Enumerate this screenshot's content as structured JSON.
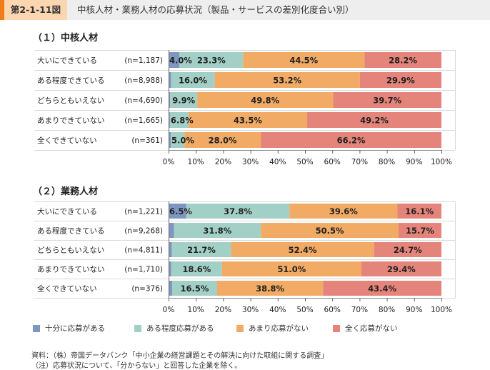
{
  "header": {
    "figure_number": "第2-1-11図",
    "title": "中核人材・業務人材の応募状況（製品・サービスの差別化度合い別）",
    "accent_color": "#ee7d1a"
  },
  "legend": [
    {
      "label": "十分に応募がある",
      "color": "#7f96c0"
    },
    {
      "label": "ある程度応募がある",
      "color": "#a3d0c6"
    },
    {
      "label": "あまり応募がない",
      "color": "#f1ab65"
    },
    {
      "label": "全く応募がない",
      "color": "#e5847a"
    }
  ],
  "chart_data": [
    {
      "type": "bar",
      "orientation": "horizontal-stacked-100",
      "title": "（１）中核人材",
      "categories": [
        "大いにできている",
        "ある程度できている",
        "どちらともいえない",
        "あまりできていない",
        "全くできていない"
      ],
      "n_labels": [
        "(n=1,187)",
        "(n=8,988)",
        "(n=4,690)",
        "(n=1,665)",
        "(n=361)"
      ],
      "series": [
        {
          "name": "十分に応募がある",
          "values": [
            4.0,
            0.9,
            0.6,
            0.5,
            0.8
          ],
          "labels": [
            "4.0%",
            "",
            "",
            "",
            ""
          ]
        },
        {
          "name": "ある程度応募がある",
          "values": [
            23.3,
            16.0,
            9.9,
            6.8,
            5.0
          ],
          "labels": [
            "23.3%",
            "16.0%",
            "9.9%",
            "6.8%",
            "5.0%"
          ]
        },
        {
          "name": "あまり応募がない",
          "values": [
            44.5,
            53.2,
            49.8,
            43.5,
            28.0
          ],
          "labels": [
            "44.5%",
            "53.2%",
            "49.8%",
            "43.5%",
            "28.0%"
          ]
        },
        {
          "name": "全く応募がない",
          "values": [
            28.2,
            29.9,
            39.7,
            49.2,
            66.2
          ],
          "labels": [
            "28.2%",
            "29.9%",
            "39.7%",
            "49.2%",
            "66.2%"
          ]
        }
      ],
      "xlim": [
        0,
        100
      ],
      "xticks": [
        "0%",
        "10%",
        "20%",
        "30%",
        "40%",
        "50%",
        "60%",
        "70%",
        "80%",
        "90%",
        "100%"
      ]
    },
    {
      "type": "bar",
      "orientation": "horizontal-stacked-100",
      "title": "（２）業務人材",
      "categories": [
        "大いにできている",
        "ある程度できている",
        "どちらともいえない",
        "あまりできていない",
        "全くできていない"
      ],
      "n_labels": [
        "(n=1,221)",
        "(n=9,268)",
        "(n=4,811)",
        "(n=1,710)",
        "(n=376)"
      ],
      "series": [
        {
          "name": "十分に応募がある",
          "values": [
            6.5,
            2.0,
            1.2,
            1.0,
            1.3
          ],
          "labels": [
            "6.5%",
            "",
            "",
            "",
            ""
          ]
        },
        {
          "name": "ある程度応募がある",
          "values": [
            37.8,
            31.8,
            21.7,
            18.6,
            16.5
          ],
          "labels": [
            "37.8%",
            "31.8%",
            "21.7%",
            "18.6%",
            "16.5%"
          ]
        },
        {
          "name": "あまり応募がない",
          "values": [
            39.6,
            50.5,
            52.4,
            51.0,
            38.8
          ],
          "labels": [
            "39.6%",
            "50.5%",
            "52.4%",
            "51.0%",
            "38.8%"
          ]
        },
        {
          "name": "全く応募がない",
          "values": [
            16.1,
            15.7,
            24.7,
            29.4,
            43.4
          ],
          "labels": [
            "16.1%",
            "15.7%",
            "24.7%",
            "29.4%",
            "43.4%"
          ]
        }
      ],
      "xlim": [
        0,
        100
      ],
      "xticks": [
        "0%",
        "10%",
        "20%",
        "30%",
        "40%",
        "50%",
        "60%",
        "70%",
        "80%",
        "90%",
        "100%"
      ]
    }
  ],
  "notes": {
    "source": "資料：（株）帝国データバンク「中小企業の経営課題とその解決に向けた取組に関する調査」",
    "note": "（注）応募状況について、「分からない」と回答した企業を除く。"
  }
}
